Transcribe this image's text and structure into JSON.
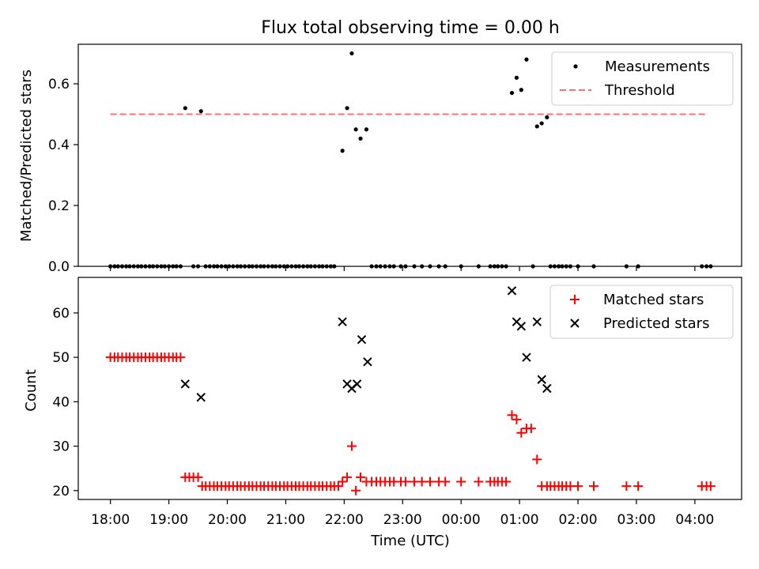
{
  "chart_data": [
    {
      "type": "scatter",
      "title": "Flux total observing time = 0.00 h",
      "ylabel": "Matched/Predicted stars",
      "ylim": [
        0,
        0.73
      ],
      "xlim": [
        17.45,
        28.8
      ],
      "yticks": [
        "0.0",
        "0.2",
        "0.4",
        "0.6"
      ],
      "grid": false,
      "legend_position": "top-right",
      "series": [
        {
          "name": "Measurements",
          "marker": "dot",
          "color": "#000000",
          "points": [
            [
              18.0,
              0
            ],
            [
              18.07,
              0
            ],
            [
              18.13,
              0
            ],
            [
              18.2,
              0
            ],
            [
              18.27,
              0
            ],
            [
              18.33,
              0
            ],
            [
              18.4,
              0
            ],
            [
              18.47,
              0
            ],
            [
              18.53,
              0
            ],
            [
              18.6,
              0
            ],
            [
              18.67,
              0
            ],
            [
              18.73,
              0
            ],
            [
              18.8,
              0
            ],
            [
              18.87,
              0
            ],
            [
              18.93,
              0
            ],
            [
              19.0,
              0
            ],
            [
              19.07,
              0
            ],
            [
              19.13,
              0
            ],
            [
              19.2,
              0
            ],
            [
              19.28,
              0.52
            ],
            [
              19.55,
              0.51
            ],
            [
              19.42,
              0
            ],
            [
              19.5,
              0
            ],
            [
              19.63,
              0
            ],
            [
              19.7,
              0
            ],
            [
              19.77,
              0
            ],
            [
              19.83,
              0
            ],
            [
              19.9,
              0
            ],
            [
              19.97,
              0
            ],
            [
              20.03,
              0
            ],
            [
              20.1,
              0
            ],
            [
              20.17,
              0
            ],
            [
              20.23,
              0
            ],
            [
              20.3,
              0
            ],
            [
              20.37,
              0
            ],
            [
              20.43,
              0
            ],
            [
              20.5,
              0
            ],
            [
              20.57,
              0
            ],
            [
              20.63,
              0
            ],
            [
              20.7,
              0
            ],
            [
              20.77,
              0
            ],
            [
              20.83,
              0
            ],
            [
              20.9,
              0
            ],
            [
              20.97,
              0
            ],
            [
              21.03,
              0
            ],
            [
              21.1,
              0
            ],
            [
              21.17,
              0
            ],
            [
              21.23,
              0
            ],
            [
              21.3,
              0
            ],
            [
              21.37,
              0
            ],
            [
              21.43,
              0
            ],
            [
              21.5,
              0
            ],
            [
              21.57,
              0
            ],
            [
              21.63,
              0
            ],
            [
              21.7,
              0
            ],
            [
              21.77,
              0
            ],
            [
              21.83,
              0
            ],
            [
              21.97,
              0.38
            ],
            [
              22.05,
              0.52
            ],
            [
              22.13,
              0.7
            ],
            [
              22.2,
              0.45
            ],
            [
              22.28,
              0.42
            ],
            [
              22.38,
              0.45
            ],
            [
              22.47,
              0
            ],
            [
              22.55,
              0
            ],
            [
              22.62,
              0
            ],
            [
              22.7,
              0
            ],
            [
              22.78,
              0
            ],
            [
              22.85,
              0
            ],
            [
              22.97,
              0
            ],
            [
              23.05,
              0
            ],
            [
              23.2,
              0
            ],
            [
              23.33,
              0
            ],
            [
              23.47,
              0
            ],
            [
              23.62,
              0
            ],
            [
              23.73,
              0
            ],
            [
              24.0,
              0
            ],
            [
              24.3,
              0
            ],
            [
              24.5,
              0
            ],
            [
              24.57,
              0
            ],
            [
              24.63,
              0
            ],
            [
              24.7,
              0
            ],
            [
              24.77,
              0
            ],
            [
              24.87,
              0.57
            ],
            [
              24.95,
              0.62
            ],
            [
              25.03,
              0.58
            ],
            [
              25.12,
              0.68
            ],
            [
              25.3,
              0.46
            ],
            [
              25.38,
              0.47
            ],
            [
              25.47,
              0.49
            ],
            [
              25.23,
              0
            ],
            [
              25.53,
              0
            ],
            [
              25.6,
              0
            ],
            [
              25.67,
              0
            ],
            [
              25.73,
              0
            ],
            [
              25.8,
              0
            ],
            [
              25.87,
              0
            ],
            [
              26.0,
              0
            ],
            [
              26.27,
              0
            ],
            [
              26.83,
              0
            ],
            [
              27.03,
              0
            ],
            [
              28.12,
              0
            ],
            [
              28.2,
              0
            ],
            [
              28.27,
              0
            ]
          ]
        },
        {
          "name": "Threshold",
          "marker": "dashed-line",
          "color": "#ff6f6f",
          "points": [
            [
              18.0,
              0.5
            ],
            [
              28.2,
              0.5
            ]
          ]
        }
      ]
    },
    {
      "type": "scatter",
      "ylabel": "Count",
      "xlabel": "Time (UTC)",
      "ylim": [
        18,
        68
      ],
      "xlim": [
        17.45,
        28.8
      ],
      "yticks": [
        "20",
        "30",
        "40",
        "50",
        "60"
      ],
      "xticks": [
        "18:00",
        "19:00",
        "20:00",
        "21:00",
        "22:00",
        "23:00",
        "00:00",
        "01:00",
        "02:00",
        "03:00",
        "04:00"
      ],
      "grid": false,
      "legend_position": "top-right",
      "series": [
        {
          "name": "Matched stars",
          "marker": "plus",
          "color": "#ff0000",
          "points": [
            [
              18.0,
              50
            ],
            [
              18.07,
              50
            ],
            [
              18.13,
              50
            ],
            [
              18.2,
              50
            ],
            [
              18.27,
              50
            ],
            [
              18.33,
              50
            ],
            [
              18.4,
              50
            ],
            [
              18.47,
              50
            ],
            [
              18.53,
              50
            ],
            [
              18.6,
              50
            ],
            [
              18.67,
              50
            ],
            [
              18.73,
              50
            ],
            [
              18.8,
              50
            ],
            [
              18.87,
              50
            ],
            [
              18.93,
              50
            ],
            [
              19.0,
              50
            ],
            [
              19.07,
              50
            ],
            [
              19.13,
              50
            ],
            [
              19.2,
              50
            ],
            [
              19.28,
              23
            ],
            [
              19.35,
              23
            ],
            [
              19.42,
              23
            ],
            [
              19.5,
              23
            ],
            [
              19.57,
              21
            ],
            [
              19.63,
              21
            ],
            [
              19.7,
              21
            ],
            [
              19.77,
              21
            ],
            [
              19.83,
              21
            ],
            [
              19.9,
              21
            ],
            [
              19.97,
              21
            ],
            [
              20.03,
              21
            ],
            [
              20.1,
              21
            ],
            [
              20.17,
              21
            ],
            [
              20.23,
              21
            ],
            [
              20.3,
              21
            ],
            [
              20.37,
              21
            ],
            [
              20.43,
              21
            ],
            [
              20.5,
              21
            ],
            [
              20.57,
              21
            ],
            [
              20.63,
              21
            ],
            [
              20.7,
              21
            ],
            [
              20.77,
              21
            ],
            [
              20.83,
              21
            ],
            [
              20.9,
              21
            ],
            [
              20.97,
              21
            ],
            [
              21.03,
              21
            ],
            [
              21.1,
              21
            ],
            [
              21.17,
              21
            ],
            [
              21.23,
              21
            ],
            [
              21.3,
              21
            ],
            [
              21.37,
              21
            ],
            [
              21.43,
              21
            ],
            [
              21.5,
              21
            ],
            [
              21.57,
              21
            ],
            [
              21.63,
              21
            ],
            [
              21.7,
              21
            ],
            [
              21.77,
              21
            ],
            [
              21.83,
              21
            ],
            [
              21.9,
              21
            ],
            [
              21.97,
              22
            ],
            [
              22.05,
              23
            ],
            [
              22.13,
              30
            ],
            [
              22.2,
              20
            ],
            [
              22.28,
              23
            ],
            [
              22.38,
              22
            ],
            [
              22.47,
              22
            ],
            [
              22.55,
              22
            ],
            [
              22.62,
              22
            ],
            [
              22.7,
              22
            ],
            [
              22.78,
              22
            ],
            [
              22.85,
              22
            ],
            [
              22.97,
              22
            ],
            [
              23.05,
              22
            ],
            [
              23.2,
              22
            ],
            [
              23.33,
              22
            ],
            [
              23.47,
              22
            ],
            [
              23.62,
              22
            ],
            [
              23.73,
              22
            ],
            [
              24.0,
              22
            ],
            [
              24.3,
              22
            ],
            [
              24.5,
              22
            ],
            [
              24.57,
              22
            ],
            [
              24.63,
              22
            ],
            [
              24.7,
              22
            ],
            [
              24.77,
              22
            ],
            [
              24.87,
              37
            ],
            [
              24.95,
              36
            ],
            [
              25.03,
              33
            ],
            [
              25.12,
              34
            ],
            [
              25.2,
              34
            ],
            [
              25.3,
              27
            ],
            [
              25.38,
              21
            ],
            [
              25.47,
              21
            ],
            [
              25.53,
              21
            ],
            [
              25.6,
              21
            ],
            [
              25.67,
              21
            ],
            [
              25.73,
              21
            ],
            [
              25.8,
              21
            ],
            [
              25.87,
              21
            ],
            [
              26.0,
              21
            ],
            [
              26.27,
              21
            ],
            [
              26.83,
              21
            ],
            [
              27.03,
              21
            ],
            [
              28.12,
              21
            ],
            [
              28.2,
              21
            ],
            [
              28.27,
              21
            ]
          ]
        },
        {
          "name": "Predicted stars",
          "marker": "x",
          "color": "#000000",
          "points": [
            [
              19.28,
              44
            ],
            [
              19.55,
              41
            ],
            [
              21.97,
              58
            ],
            [
              22.05,
              44
            ],
            [
              22.13,
              43
            ],
            [
              22.22,
              44
            ],
            [
              22.3,
              54
            ],
            [
              22.4,
              49
            ],
            [
              24.87,
              65
            ],
            [
              24.95,
              58
            ],
            [
              25.03,
              57
            ],
            [
              25.12,
              50
            ],
            [
              25.3,
              58
            ],
            [
              25.38,
              45
            ],
            [
              25.47,
              43
            ]
          ]
        }
      ]
    }
  ]
}
